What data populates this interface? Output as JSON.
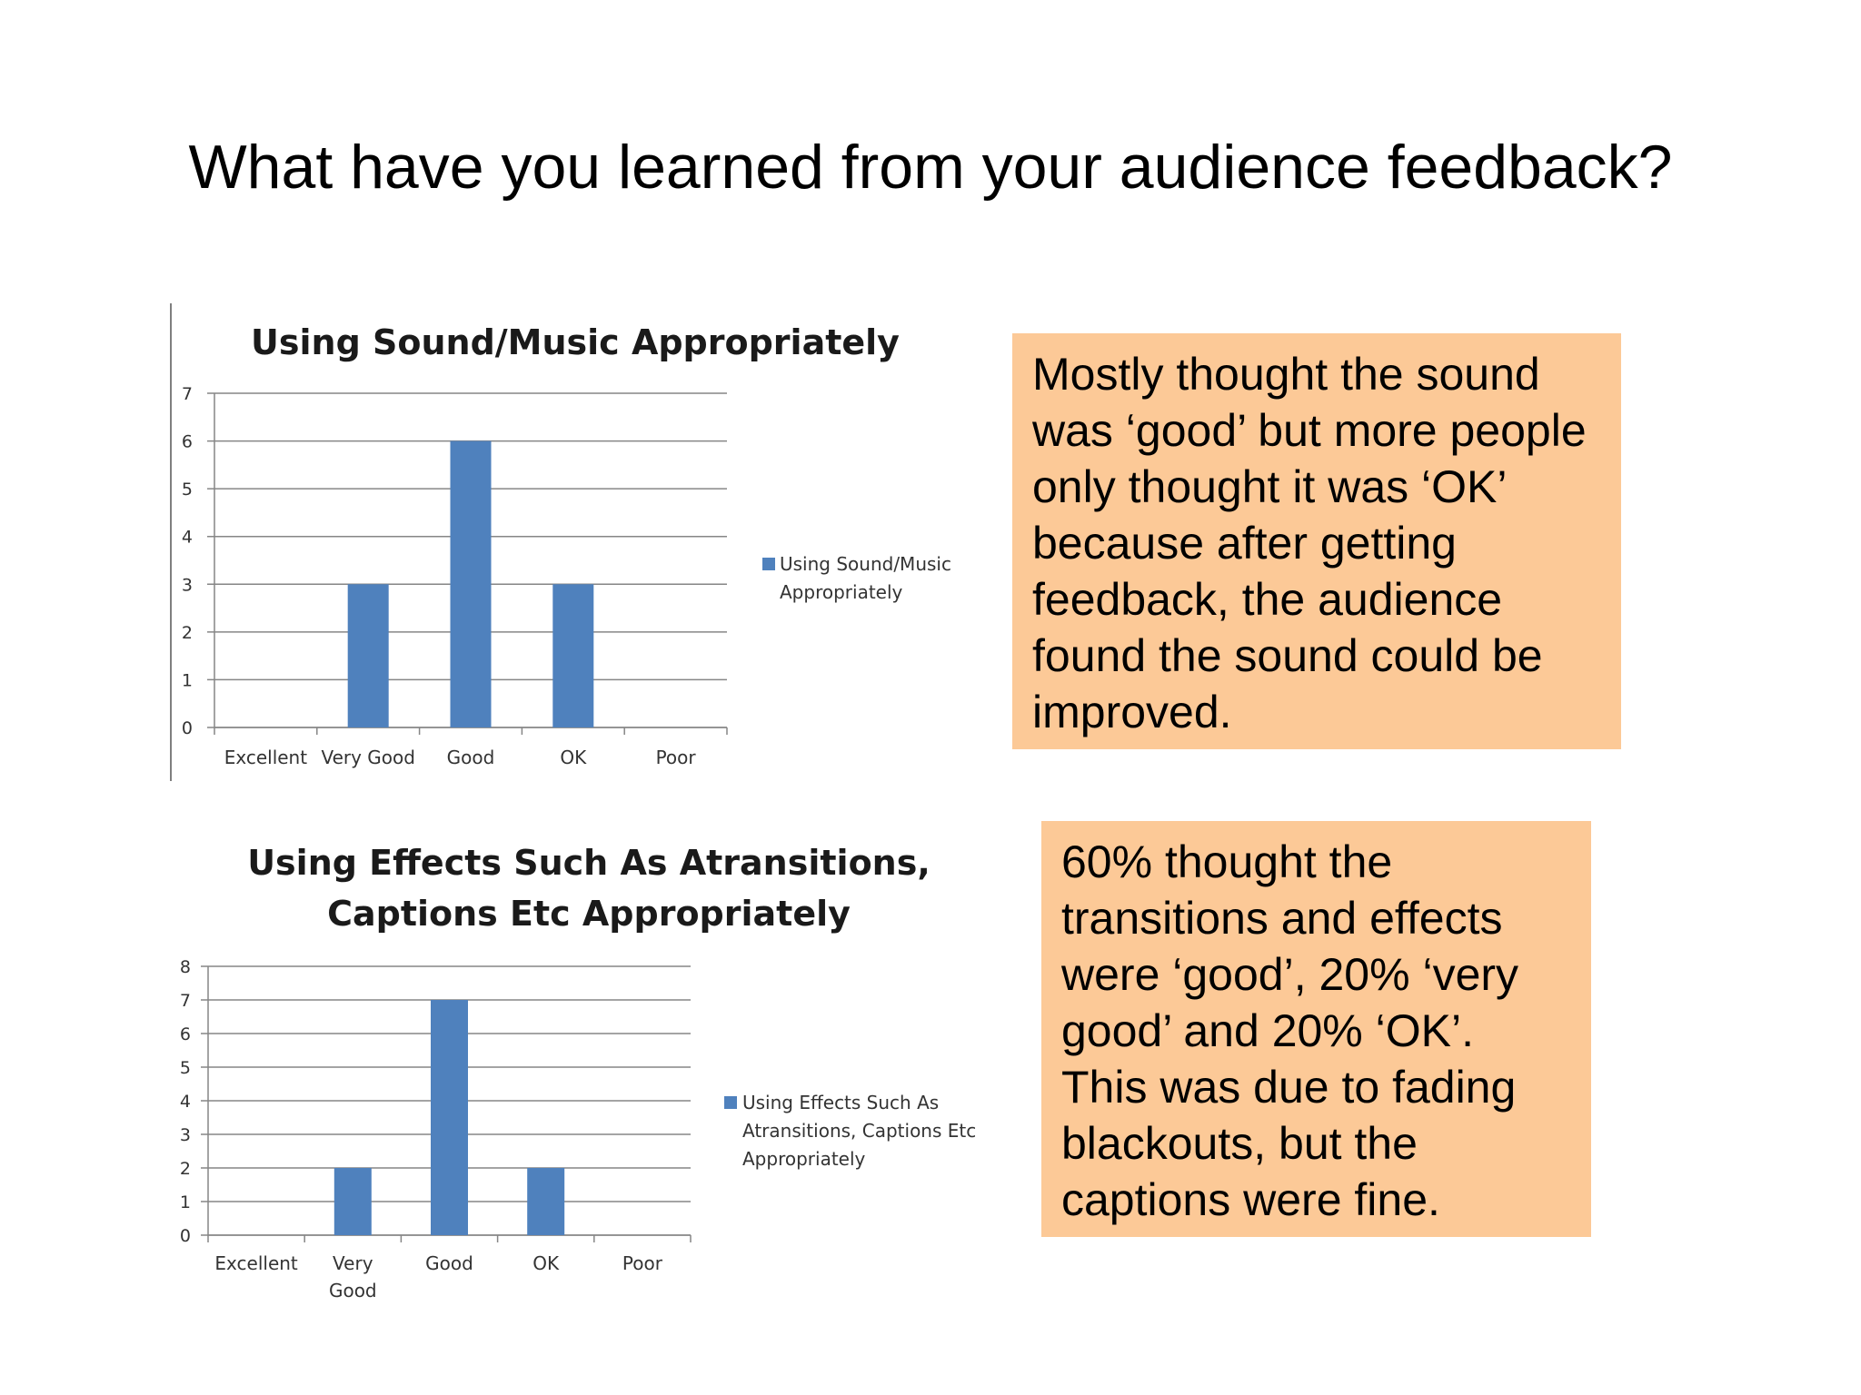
{
  "slide": {
    "title": "What have you learned from your audience feedback?"
  },
  "notes": [
    {
      "text": "Mostly thought the sound was ‘good’ but more people only thought it was ‘OK’ because after getting feedback, the audience found the sound could be improved."
    },
    {
      "text": "60% thought the transitions and effects were ‘good’, 20% ‘very good’ and 20% ‘OK’. This was due to fading blackouts, but the captions were fine."
    }
  ],
  "colors": {
    "bar": "#4f81bd",
    "note_background": "#fcc997",
    "gridline": "#868686"
  },
  "chart_data": [
    {
      "type": "bar",
      "title": "Using Sound/Music Appropriately",
      "categories": [
        "Excellent",
        "Very Good",
        "Good",
        "OK",
        "Poor"
      ],
      "series": [
        {
          "name": "Using Sound/Music Appropriately",
          "values": [
            0,
            3,
            6,
            3,
            0
          ]
        }
      ],
      "ylim": [
        0,
        7
      ],
      "yticks": [
        0,
        1,
        2,
        3,
        4,
        5,
        6,
        7
      ],
      "grid": true,
      "legend": "right"
    },
    {
      "type": "bar",
      "title": "Using Effects Such As Atransitions, Captions Etc Appropriately",
      "categories": [
        "Excellent",
        "Very Good",
        "Good",
        "OK",
        "Poor"
      ],
      "series": [
        {
          "name": "Using Effects Such As Atransitions, Captions Etc Appropriately",
          "values": [
            0,
            2,
            7,
            2,
            0
          ]
        }
      ],
      "ylim": [
        0,
        8
      ],
      "yticks": [
        0,
        1,
        2,
        3,
        4,
        5,
        6,
        7,
        8
      ],
      "grid": true,
      "legend": "right"
    }
  ]
}
